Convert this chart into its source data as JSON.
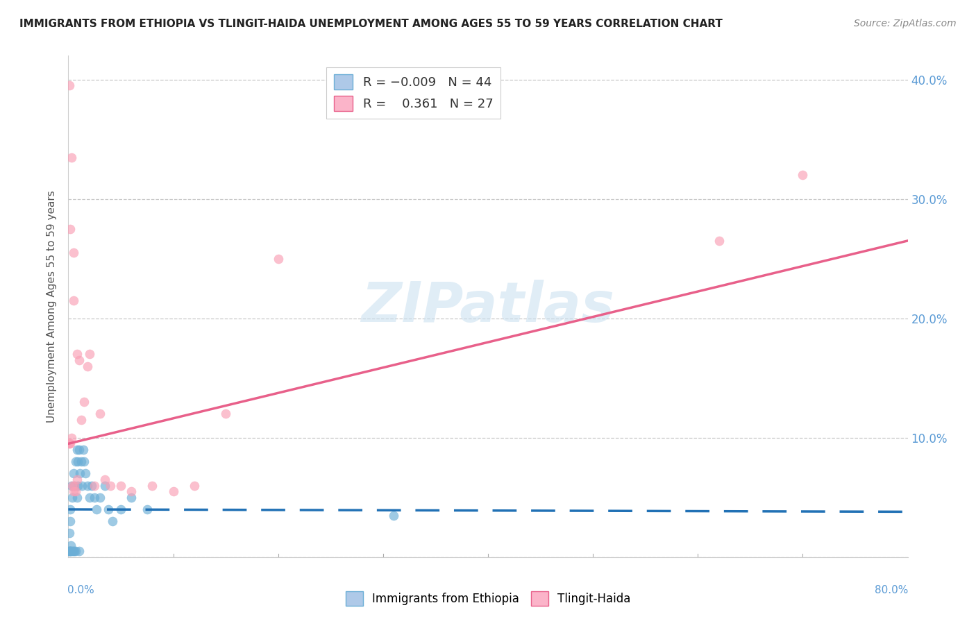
{
  "title": "IMMIGRANTS FROM ETHIOPIA VS TLINGIT-HAIDA UNEMPLOYMENT AMONG AGES 55 TO 59 YEARS CORRELATION CHART",
  "source": "Source: ZipAtlas.com",
  "ylabel": "Unemployment Among Ages 55 to 59 years",
  "xlim": [
    0,
    0.8
  ],
  "ylim": [
    0,
    0.42
  ],
  "yticks": [
    0.0,
    0.1,
    0.2,
    0.3,
    0.4
  ],
  "ytick_labels": [
    "",
    "10.0%",
    "20.0%",
    "30.0%",
    "40.0%"
  ],
  "blue_scatter_x": [
    0.0005,
    0.001,
    0.001,
    0.0015,
    0.0015,
    0.002,
    0.002,
    0.0025,
    0.003,
    0.003,
    0.004,
    0.004,
    0.005,
    0.005,
    0.006,
    0.006,
    0.007,
    0.007,
    0.008,
    0.008,
    0.009,
    0.009,
    0.01,
    0.01,
    0.011,
    0.012,
    0.013,
    0.014,
    0.015,
    0.016,
    0.018,
    0.02,
    0.022,
    0.025,
    0.027,
    0.03,
    0.035,
    0.038,
    0.042,
    0.05,
    0.06,
    0.075,
    0.31,
    0.002
  ],
  "blue_scatter_y": [
    0.005,
    0.005,
    0.02,
    0.005,
    0.04,
    0.005,
    0.03,
    0.01,
    0.005,
    0.06,
    0.005,
    0.05,
    0.005,
    0.07,
    0.005,
    0.06,
    0.005,
    0.08,
    0.05,
    0.09,
    0.06,
    0.08,
    0.005,
    0.09,
    0.07,
    0.08,
    0.06,
    0.09,
    0.08,
    0.07,
    0.06,
    0.05,
    0.06,
    0.05,
    0.04,
    0.05,
    0.06,
    0.04,
    0.03,
    0.04,
    0.05,
    0.04,
    0.035,
    0.005
  ],
  "pink_scatter_x": [
    0.0005,
    0.001,
    0.002,
    0.003,
    0.004,
    0.005,
    0.006,
    0.007,
    0.008,
    0.01,
    0.012,
    0.015,
    0.018,
    0.02,
    0.025,
    0.03,
    0.035,
    0.04,
    0.05,
    0.06,
    0.08,
    0.1,
    0.12,
    0.15,
    0.2,
    0.62,
    0.7
  ],
  "pink_scatter_y": [
    0.095,
    0.095,
    0.095,
    0.1,
    0.06,
    0.055,
    0.06,
    0.055,
    0.065,
    0.165,
    0.115,
    0.13,
    0.16,
    0.17,
    0.06,
    0.12,
    0.065,
    0.06,
    0.06,
    0.055,
    0.06,
    0.055,
    0.06,
    0.12,
    0.25,
    0.265,
    0.32
  ],
  "pink_outlier_x": [
    0.001,
    0.002,
    0.003,
    0.005,
    0.005,
    0.008
  ],
  "pink_outlier_y": [
    0.395,
    0.275,
    0.335,
    0.255,
    0.215,
    0.17
  ],
  "blue_line_x": [
    0.0,
    0.8
  ],
  "blue_line_y": [
    0.04,
    0.038
  ],
  "pink_line_x": [
    0.0,
    0.8
  ],
  "pink_line_y": [
    0.095,
    0.265
  ],
  "blue_scatter_color": "#6baed6",
  "pink_scatter_color": "#fa9fb5",
  "blue_line_color": "#2171b5",
  "pink_line_color": "#e8608a",
  "watermark_color": "#c8dff0",
  "background_color": "#ffffff",
  "grid_color": "#c8c8c8",
  "tick_color": "#5b9bd5",
  "legend_blue_face": "#aec9e8",
  "legend_blue_edge": "#6baed6",
  "legend_pink_face": "#fbb4c9",
  "legend_pink_edge": "#e8608a"
}
